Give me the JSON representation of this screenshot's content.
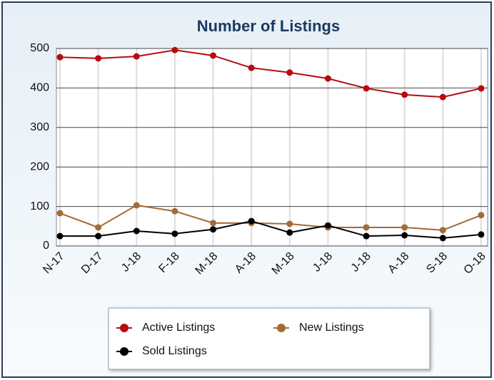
{
  "chart_data": {
    "type": "line",
    "title": "Number of Listings",
    "categories": [
      "N-17",
      "D-17",
      "J-18",
      "F-18",
      "M-18",
      "A-18",
      "M-18",
      "J-18",
      "J-18",
      "A-18",
      "S-18",
      "O-18"
    ],
    "series": [
      {
        "name": "Active Listings",
        "color": "#b80a0f",
        "values": [
          478,
          475,
          480,
          496,
          482,
          451,
          439,
          424,
          399,
          383,
          377,
          399
        ]
      },
      {
        "name": "New Listings",
        "color": "#a36b37",
        "values": [
          83,
          47,
          103,
          88,
          58,
          58,
          56,
          47,
          47,
          47,
          40,
          78
        ]
      },
      {
        "name": "Sold Listings",
        "color": "#000000",
        "values": [
          25,
          25,
          38,
          31,
          42,
          63,
          34,
          52,
          25,
          27,
          20,
          29
        ]
      }
    ],
    "ylim": [
      0,
      500
    ],
    "yticks": [
      0,
      100,
      200,
      300,
      400,
      500
    ],
    "grid": true,
    "legend": "bottom"
  }
}
